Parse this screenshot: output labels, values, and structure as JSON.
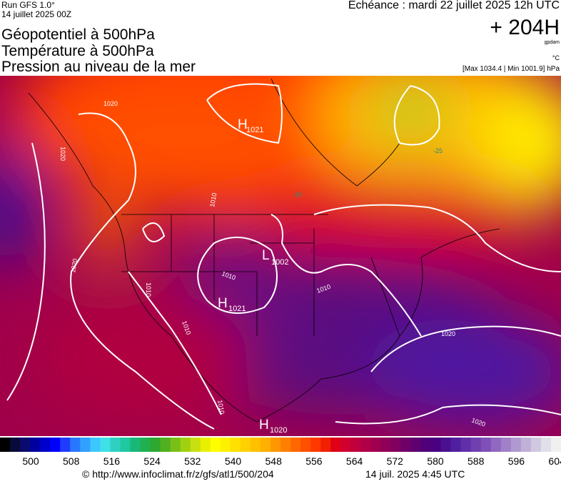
{
  "header": {
    "run": "Run GFS 1.0°",
    "run_date": "14 juillet 2025 00Z",
    "titles": [
      "Géopotentiel à 500hPa",
      "Température à 500hPa",
      "Pression au niveau de la mer"
    ],
    "valid": "Echéance : mardi 22 juillet 2025 12h UTC",
    "lead": "+ 204H",
    "unit_geo": "gpdam",
    "unit_temp": "°C",
    "pressure_range": "[Max 1034.4 | Min 1001.9] hPa"
  },
  "map": {
    "pressure_centers": [
      {
        "letter": "H",
        "value": "1021"
      },
      {
        "letter": "L",
        "value": "1002"
      },
      {
        "letter": "H",
        "value": "1021"
      },
      {
        "letter": "H",
        "value": "1020"
      }
    ],
    "isobar_labels": [
      "1020",
      "1020",
      "1020",
      "1010",
      "1010",
      "1010",
      "1010",
      "1010",
      "1020",
      "1020",
      "1010"
    ],
    "temperature_labels": [
      "-16",
      "-25"
    ]
  },
  "colorbar": {
    "ticks": [
      "500",
      "508",
      "516",
      "524",
      "532",
      "540",
      "548",
      "556",
      "564",
      "572",
      "580",
      "588",
      "596",
      "604"
    ],
    "colors": [
      "#000000",
      "#0a0a3a",
      "#0b0b6e",
      "#0000a0",
      "#0000cc",
      "#0000ff",
      "#1e3cff",
      "#2878ff",
      "#32a0ff",
      "#3cc8ff",
      "#40e0e8",
      "#30d0c0",
      "#20c8a0",
      "#18b878",
      "#20b050",
      "#30a830",
      "#50b020",
      "#78c018",
      "#a0d010",
      "#c8e010",
      "#e8f000",
      "#ffff00",
      "#fff000",
      "#ffe000",
      "#ffd000",
      "#ffc000",
      "#ffb000",
      "#ff9800",
      "#ff8000",
      "#ff6800",
      "#ff5000",
      "#ff3800",
      "#f02000",
      "#e00018",
      "#d00030",
      "#c0003c",
      "#b00048",
      "#a00050",
      "#900058",
      "#800060",
      "#700068",
      "#600070",
      "#500078",
      "#4a0080",
      "#4a1090",
      "#5020a0",
      "#6030a8",
      "#7040b0",
      "#8050b8",
      "#9068c0",
      "#a080c8",
      "#b098d0",
      "#c0b0d8",
      "#d0c8e0",
      "#e0e0e8",
      "#f0f0f0"
    ]
  },
  "footer": {
    "url": "© http://www.infoclimat.fr/z/gfs/atl1/500/204",
    "date": "14 juil. 2025  4:45 UTC"
  }
}
